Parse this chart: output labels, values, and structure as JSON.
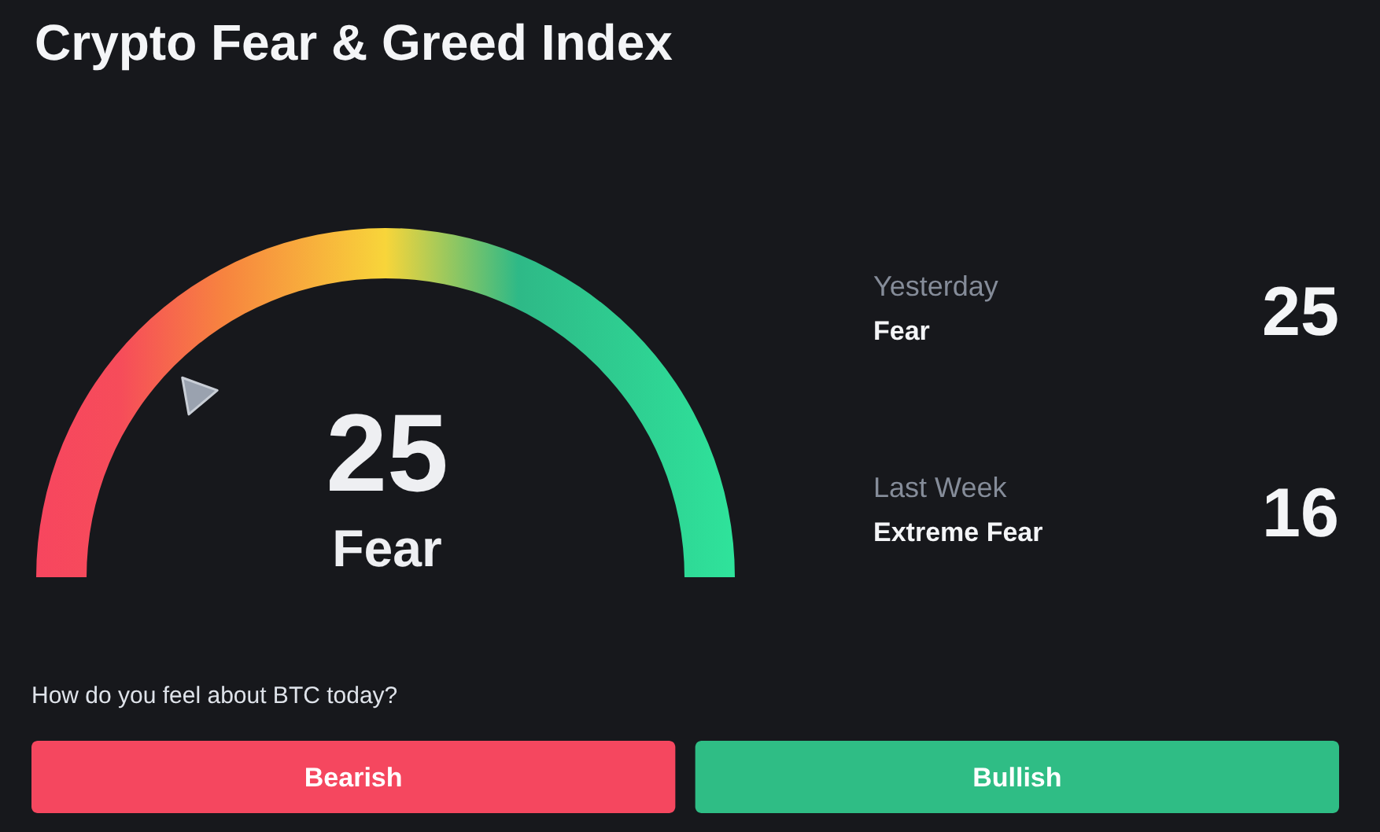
{
  "chart_data": [
    {
      "type": "other",
      "title": "Crypto Fear & Greed Index",
      "categories": [
        "Fear"
      ],
      "values": [
        25
      ],
      "data_labels": true
    },
    {
      "type": "other",
      "categories": [
        "Yesterday",
        "Last Week"
      ],
      "values": [
        25,
        16
      ],
      "data_labels": true,
      "annotations": [
        {
          "text": "Fear",
          "x": "Yesterday"
        },
        {
          "text": "Extreme Fear",
          "x": "Last Week"
        }
      ]
    },
    {
      "type": "other",
      "title": "How do you feel about BTC today?",
      "categories": [
        "Bearish",
        "Bullish"
      ],
      "colors": [
        "#f5475f",
        "#2fbd85"
      ]
    }
  ]
}
